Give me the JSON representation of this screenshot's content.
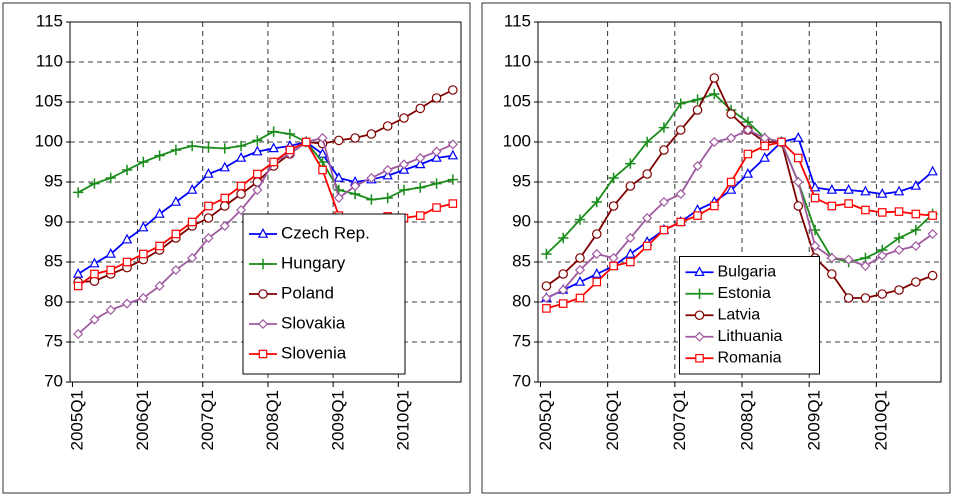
{
  "chart_data": [
    {
      "type": "line",
      "categories": [
        "2005Q1",
        null,
        null,
        null,
        "2006Q1",
        null,
        null,
        null,
        "2007Q1",
        null,
        null,
        null,
        "2008Q1",
        null,
        null,
        null,
        "2009Q1",
        null,
        null,
        null,
        "2010Q1",
        null,
        null,
        null
      ],
      "ylim": [
        70,
        115
      ],
      "yticks": [
        70,
        75,
        80,
        85,
        90,
        95,
        100,
        105,
        110,
        115
      ],
      "grid": true,
      "legend": "lower right",
      "series": [
        {
          "name": "Czech Rep.",
          "color": "#0000ff",
          "marker": "triangle",
          "values": [
            83.5,
            84.8,
            86,
            87.8,
            89.3,
            91,
            92.5,
            94,
            96,
            96.8,
            98,
            98.8,
            99.2,
            99.5,
            100,
            98.5,
            95.5,
            95,
            95.3,
            95.8,
            96.5,
            97.2,
            98,
            98.3
          ]
        },
        {
          "name": "Hungary",
          "color": "#1a8c1a",
          "marker": "plus",
          "values": [
            93.7,
            94.8,
            95.5,
            96.5,
            97.5,
            98.3,
            99,
            99.5,
            99.3,
            99.2,
            99.5,
            100.2,
            101.3,
            101,
            100,
            97.5,
            94,
            93.5,
            92.8,
            93,
            94,
            94.3,
            94.8,
            95.3
          ]
        },
        {
          "name": "Poland",
          "color": "#800000",
          "marker": "circle",
          "values": [
            82.5,
            82.6,
            83.5,
            84.3,
            85.3,
            86.5,
            88,
            89.5,
            90.5,
            92,
            93.5,
            95,
            97,
            98.5,
            100,
            99.8,
            100.2,
            100.5,
            101,
            102,
            103,
            104.2,
            105.5,
            106.5
          ]
        },
        {
          "name": "Slovakia",
          "color": "#a05aa0",
          "marker": "diamond",
          "values": [
            76,
            77.8,
            79,
            79.8,
            80.5,
            82,
            84,
            85.5,
            88,
            89.5,
            91.5,
            94,
            97.5,
            98.5,
            100,
            100.5,
            93,
            94.5,
            95.5,
            96.5,
            97.2,
            98,
            98.8,
            99.7
          ]
        },
        {
          "name": "Slovenia",
          "color": "#ff0000",
          "marker": "square",
          "values": [
            82,
            83.5,
            84,
            85,
            86,
            87,
            88.5,
            90,
            92,
            93,
            94.5,
            96,
            97.5,
            99,
            100,
            96.5,
            90.8,
            90.3,
            90.5,
            90.7,
            90.5,
            90.8,
            91.8,
            92.3
          ]
        }
      ]
    },
    {
      "type": "line",
      "categories": [
        "2005Q1",
        null,
        null,
        null,
        "2006Q1",
        null,
        null,
        null,
        "2007Q1",
        null,
        null,
        null,
        "2008Q1",
        null,
        null,
        null,
        "2009Q1",
        null,
        null,
        null,
        "2010Q1",
        null,
        null,
        null
      ],
      "ylim": [
        70,
        115
      ],
      "yticks": [
        70,
        75,
        80,
        85,
        90,
        95,
        100,
        105,
        110,
        115
      ],
      "grid": true,
      "legend": "lower center",
      "series": [
        {
          "name": "Bulgaria",
          "color": "#0000ff",
          "marker": "triangle",
          "values": [
            80.5,
            81.5,
            82.5,
            83.5,
            84.5,
            86,
            87.5,
            89,
            90,
            91.5,
            92.5,
            94,
            96,
            98,
            100,
            100.5,
            94.3,
            94,
            94,
            93.8,
            93.5,
            93.8,
            94.5,
            96.3
          ]
        },
        {
          "name": "Estonia",
          "color": "#1a8c1a",
          "marker": "plus",
          "values": [
            86,
            88,
            90.3,
            92.5,
            95.5,
            97.3,
            100,
            101.8,
            104.8,
            105.3,
            106,
            104,
            102.5,
            100.5,
            100,
            95,
            89,
            85.5,
            85,
            85.5,
            86.5,
            88,
            89,
            91
          ]
        },
        {
          "name": "Latvia",
          "color": "#800000",
          "marker": "circle",
          "values": [
            82,
            83.5,
            85.5,
            88.5,
            92,
            94.5,
            96,
            99,
            101.5,
            104,
            108,
            103.5,
            101.5,
            100,
            100,
            92,
            85.5,
            83.5,
            80.5,
            80.5,
            81,
            81.5,
            82.5,
            83.3
          ]
        },
        {
          "name": "Lithuania",
          "color": "#a05aa0",
          "marker": "diamond",
          "values": [
            80.5,
            81.5,
            84,
            86,
            85.5,
            88,
            90.5,
            92.5,
            93.5,
            97,
            100,
            100.5,
            101.5,
            100.5,
            100,
            95,
            87,
            85.5,
            85.3,
            84.5,
            85.8,
            86.5,
            87,
            88.5
          ]
        },
        {
          "name": "Romania",
          "color": "#ff0000",
          "marker": "square",
          "values": [
            79.2,
            79.8,
            80.5,
            82.5,
            84.5,
            85,
            87,
            89,
            90,
            90.8,
            92,
            95,
            98.5,
            99.5,
            100,
            98,
            93,
            92,
            92.3,
            91.5,
            91.2,
            91.3,
            91,
            90.8
          ]
        }
      ]
    }
  ]
}
